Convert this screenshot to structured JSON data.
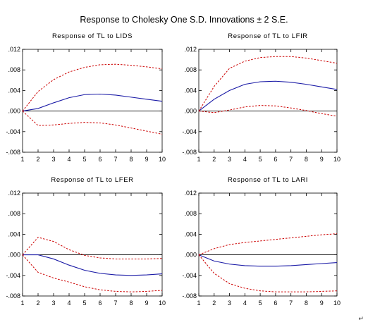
{
  "title": "Response to Cholesky  One S.D. Innovations ± 2 S.E.",
  "corner_mark": "↵",
  "colors": {
    "response": "#1a1aa6",
    "band": "#cc0000",
    "zero": "#000000",
    "axis": "#000000"
  },
  "chart_data": [
    {
      "type": "line",
      "title": "Response of TL to LIDS",
      "x": [
        1,
        2,
        3,
        4,
        5,
        6,
        7,
        8,
        9,
        10
      ],
      "xticks": [
        "1",
        "2",
        "3",
        "4",
        "5",
        "6",
        "7",
        "8",
        "9",
        "10"
      ],
      "yticks": [
        ".012",
        ".008",
        ".004",
        ".000",
        "-.004",
        "-.008"
      ],
      "ylim": [
        -0.008,
        0.012
      ],
      "series": [
        {
          "role": "response",
          "values": [
            0.0,
            0.0005,
            0.0016,
            0.0026,
            0.0032,
            0.0033,
            0.0031,
            0.0027,
            0.0023,
            0.0019
          ]
        },
        {
          "role": "upper",
          "values": [
            0.0,
            0.0038,
            0.0061,
            0.0076,
            0.0085,
            0.009,
            0.0091,
            0.0089,
            0.0086,
            0.0082
          ]
        },
        {
          "role": "lower",
          "values": [
            0.0,
            -0.0028,
            -0.0027,
            -0.0024,
            -0.0022,
            -0.0023,
            -0.0027,
            -0.0033,
            -0.0039,
            -0.0045
          ]
        }
      ]
    },
    {
      "type": "line",
      "title": "Response of TL to LFIR",
      "x": [
        1,
        2,
        3,
        4,
        5,
        6,
        7,
        8,
        9,
        10
      ],
      "xticks": [
        "1",
        "2",
        "3",
        "4",
        "5",
        "6",
        "7",
        "8",
        "9",
        "10"
      ],
      "yticks": [
        ".012",
        ".008",
        ".004",
        ".000",
        "-.004",
        "-.008"
      ],
      "ylim": [
        -0.008,
        0.012
      ],
      "series": [
        {
          "role": "response",
          "values": [
            0.0,
            0.0023,
            0.004,
            0.0052,
            0.0057,
            0.0058,
            0.0056,
            0.0052,
            0.0047,
            0.0042
          ]
        },
        {
          "role": "upper",
          "values": [
            0.0,
            0.0048,
            0.0083,
            0.0097,
            0.0104,
            0.0106,
            0.0106,
            0.0103,
            0.0098,
            0.0093
          ]
        },
        {
          "role": "lower",
          "values": [
            0.0,
            -0.0003,
            0.0002,
            0.0008,
            0.0011,
            0.001,
            0.0006,
            0.0001,
            -0.0005,
            -0.001
          ]
        }
      ]
    },
    {
      "type": "line",
      "title": "Response of TL to LFER",
      "x": [
        1,
        2,
        3,
        4,
        5,
        6,
        7,
        8,
        9,
        10
      ],
      "xticks": [
        "1",
        "2",
        "3",
        "4",
        "5",
        "6",
        "7",
        "8",
        "9",
        "10"
      ],
      "yticks": [
        ".012",
        ".008",
        ".004",
        ".000",
        "-.004",
        "-.008"
      ],
      "ylim": [
        -0.008,
        0.012
      ],
      "series": [
        {
          "role": "response",
          "values": [
            0.0,
            0.0,
            -0.0008,
            -0.002,
            -0.003,
            -0.0036,
            -0.0039,
            -0.004,
            -0.0039,
            -0.0037
          ]
        },
        {
          "role": "upper",
          "values": [
            0.0,
            0.0034,
            0.0026,
            0.001,
            -0.0001,
            -0.0006,
            -0.0008,
            -0.0008,
            -0.0008,
            -0.0007
          ]
        },
        {
          "role": "lower",
          "values": [
            0.0,
            -0.0034,
            -0.0045,
            -0.0053,
            -0.0062,
            -0.0068,
            -0.0071,
            -0.0072,
            -0.0071,
            -0.0069
          ]
        }
      ]
    },
    {
      "type": "line",
      "title": "Response of TL to LARI",
      "x": [
        1,
        2,
        3,
        4,
        5,
        6,
        7,
        8,
        9,
        10
      ],
      "xticks": [
        "1",
        "2",
        "3",
        "4",
        "5",
        "6",
        "7",
        "8",
        "9",
        "10"
      ],
      "yticks": [
        ".012",
        ".008",
        ".004",
        ".000",
        "-.004",
        "-.008"
      ],
      "ylim": [
        -0.008,
        0.012
      ],
      "series": [
        {
          "role": "response",
          "values": [
            0.0,
            -0.0012,
            -0.0018,
            -0.0021,
            -0.0022,
            -0.0022,
            -0.0021,
            -0.0019,
            -0.0017,
            -0.0015
          ]
        },
        {
          "role": "upper",
          "values": [
            0.0,
            0.0012,
            0.002,
            0.0024,
            0.0027,
            0.003,
            0.0033,
            0.0036,
            0.0039,
            0.0041
          ]
        },
        {
          "role": "lower",
          "values": [
            0.0,
            -0.0036,
            -0.0056,
            -0.0065,
            -0.007,
            -0.0072,
            -0.0072,
            -0.0072,
            -0.0071,
            -0.007
          ]
        }
      ]
    }
  ]
}
